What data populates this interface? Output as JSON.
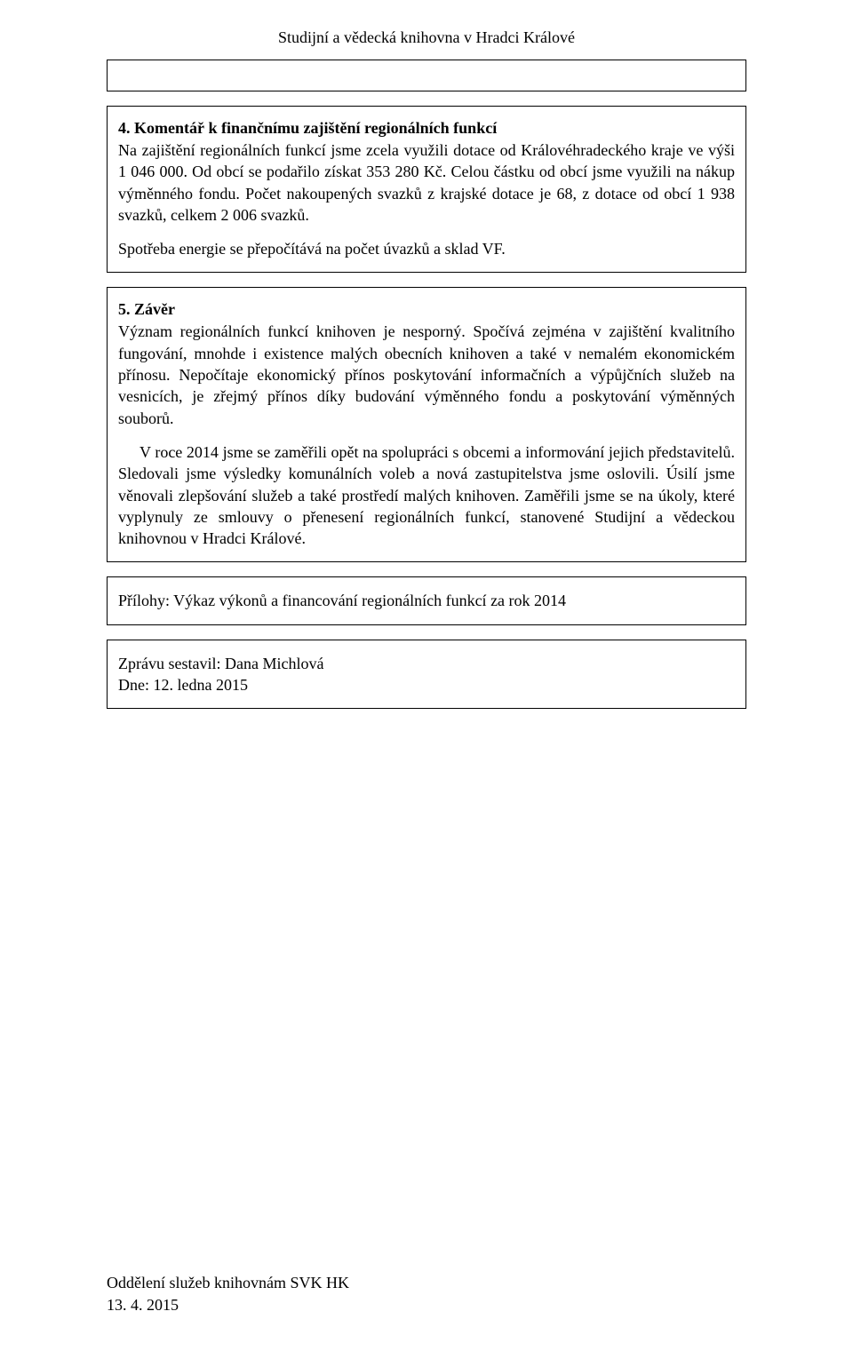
{
  "header": {
    "institution": "Studijní a vědecká knihovna v Hradci Králové"
  },
  "colors": {
    "text": "#000000",
    "background": "#ffffff",
    "border": "#000000"
  },
  "typography": {
    "font_family": "Times New Roman",
    "body_size_pt": 14,
    "heading_weight": "bold"
  },
  "section4": {
    "title": "4. Komentář k finančnímu zajištění regionálních funkcí",
    "p1": "Na zajištění regionálních funkcí jsme zcela využili dotace od Královéhradeckého kraje ve výši 1 046 000. Od obcí se podařilo získat 353 280 Kč. Celou částku od obcí jsme využili na nákup výměnného fondu. Počet nakoupených svazků z krajské dotace je 68, z dotace od obcí 1 938 svazků, celkem 2 006 svazků.",
    "p2": "Spotřeba energie se přepočítává na počet úvazků a sklad VF."
  },
  "section5": {
    "title": "5. Závěr",
    "p1": "Význam regionálních funkcí knihoven je nesporný. Spočívá zejména v zajištění kvalitního fungování, mnohde i existence malých obecních knihoven a také v nemalém ekonomickém přínosu. Nepočítaje ekonomický přínos poskytování informačních a výpůjčních služeb na vesnicích, je zřejmý přínos díky budování výměnného fondu a poskytování výměnných souborů.",
    "p2": "V roce 2014 jsme se zaměřili opět na spolupráci s obcemi a informování jejich představitelů. Sledovali jsme výsledky komunálních voleb a nová zastupitelstva jsme oslovili. Úsilí jsme věnovali zlepšování služeb a také prostředí malých knihoven. Zaměřili jsme se na úkoly, které vyplynuly ze smlouvy o přenesení regionálních funkcí, stanovené Studijní a vědeckou knihovnou v Hradci Králové."
  },
  "attachments": {
    "line": "Přílohy: Výkaz výkonů a financování regionálních funkcí za rok 2014"
  },
  "author_block": {
    "author": "Zprávu sestavil: Dana Michlová",
    "date": "Dne: 12. ledna 2015"
  },
  "footer": {
    "department": "Oddělení služeb knihovnám SVK HK",
    "date": "13. 4. 2015"
  }
}
